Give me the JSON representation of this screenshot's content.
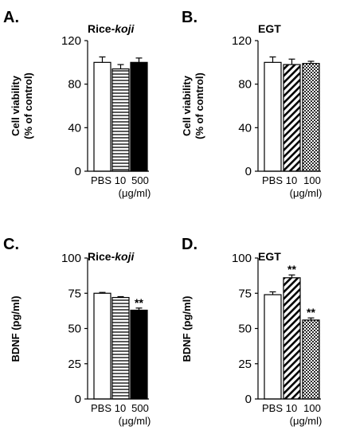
{
  "chart_data": [
    {
      "type": "bar",
      "panel_label": "A.",
      "title_parts": [
        {
          "text": "Rice-"
        },
        {
          "text": "koji",
          "italic": true
        }
      ],
      "ylabel_lines": [
        "Cell viability",
        "(%  of control)"
      ],
      "categories": [
        "PBS",
        "10",
        "500"
      ],
      "x_unit": "(μg/ml)",
      "values": [
        100,
        94,
        100
      ],
      "errors": [
        5,
        4,
        4
      ],
      "significance": [
        "",
        "",
        ""
      ],
      "fills": [
        "white",
        "hlines",
        "black"
      ],
      "ylim": [
        0,
        120
      ],
      "yticks": [
        0,
        40,
        80,
        120
      ],
      "grid": false,
      "legend": "none"
    },
    {
      "type": "bar",
      "panel_label": "B.",
      "title_parts": [
        {
          "text": "EGT"
        }
      ],
      "ylabel_lines": [
        "Cell viability",
        "(%  of control)"
      ],
      "categories": [
        "PBS",
        "10",
        "100"
      ],
      "x_unit": "(μg/ml)",
      "values": [
        100,
        98,
        99
      ],
      "errors": [
        5,
        5,
        2
      ],
      "significance": [
        "",
        "",
        ""
      ],
      "fills": [
        "white",
        "diag",
        "dots"
      ],
      "ylim": [
        0,
        120
      ],
      "yticks": [
        0,
        40,
        80,
        120
      ],
      "grid": false,
      "legend": "none"
    },
    {
      "type": "bar",
      "panel_label": "C.",
      "title_parts": [
        {
          "text": "Rice-"
        },
        {
          "text": "koji",
          "italic": true
        }
      ],
      "ylabel_lines": [
        "BDNF (pg/ml)"
      ],
      "categories": [
        "PBS",
        "10",
        "500"
      ],
      "x_unit": "(μg/ml)",
      "values": [
        75,
        72,
        63
      ],
      "errors": [
        0.6,
        0.6,
        1.5
      ],
      "significance": [
        "",
        "",
        "**"
      ],
      "fills": [
        "white",
        "hlines",
        "black"
      ],
      "ylim": [
        0,
        100
      ],
      "yticks": [
        0,
        25,
        50,
        75,
        100
      ],
      "grid": false,
      "legend": "none"
    },
    {
      "type": "bar",
      "panel_label": "D.",
      "title_parts": [
        {
          "text": "EGT"
        }
      ],
      "ylabel_lines": [
        "BDNF (pg/ml)"
      ],
      "categories": [
        "PBS",
        "10",
        "100"
      ],
      "x_unit": "(μg/ml)",
      "values": [
        74,
        86,
        56
      ],
      "errors": [
        2,
        2,
        1.5
      ],
      "significance": [
        "",
        "**",
        "**"
      ],
      "fills": [
        "white",
        "diag",
        "dots"
      ],
      "ylim": [
        0,
        100
      ],
      "yticks": [
        0,
        25,
        50,
        75,
        100
      ],
      "grid": false,
      "legend": "none"
    }
  ]
}
